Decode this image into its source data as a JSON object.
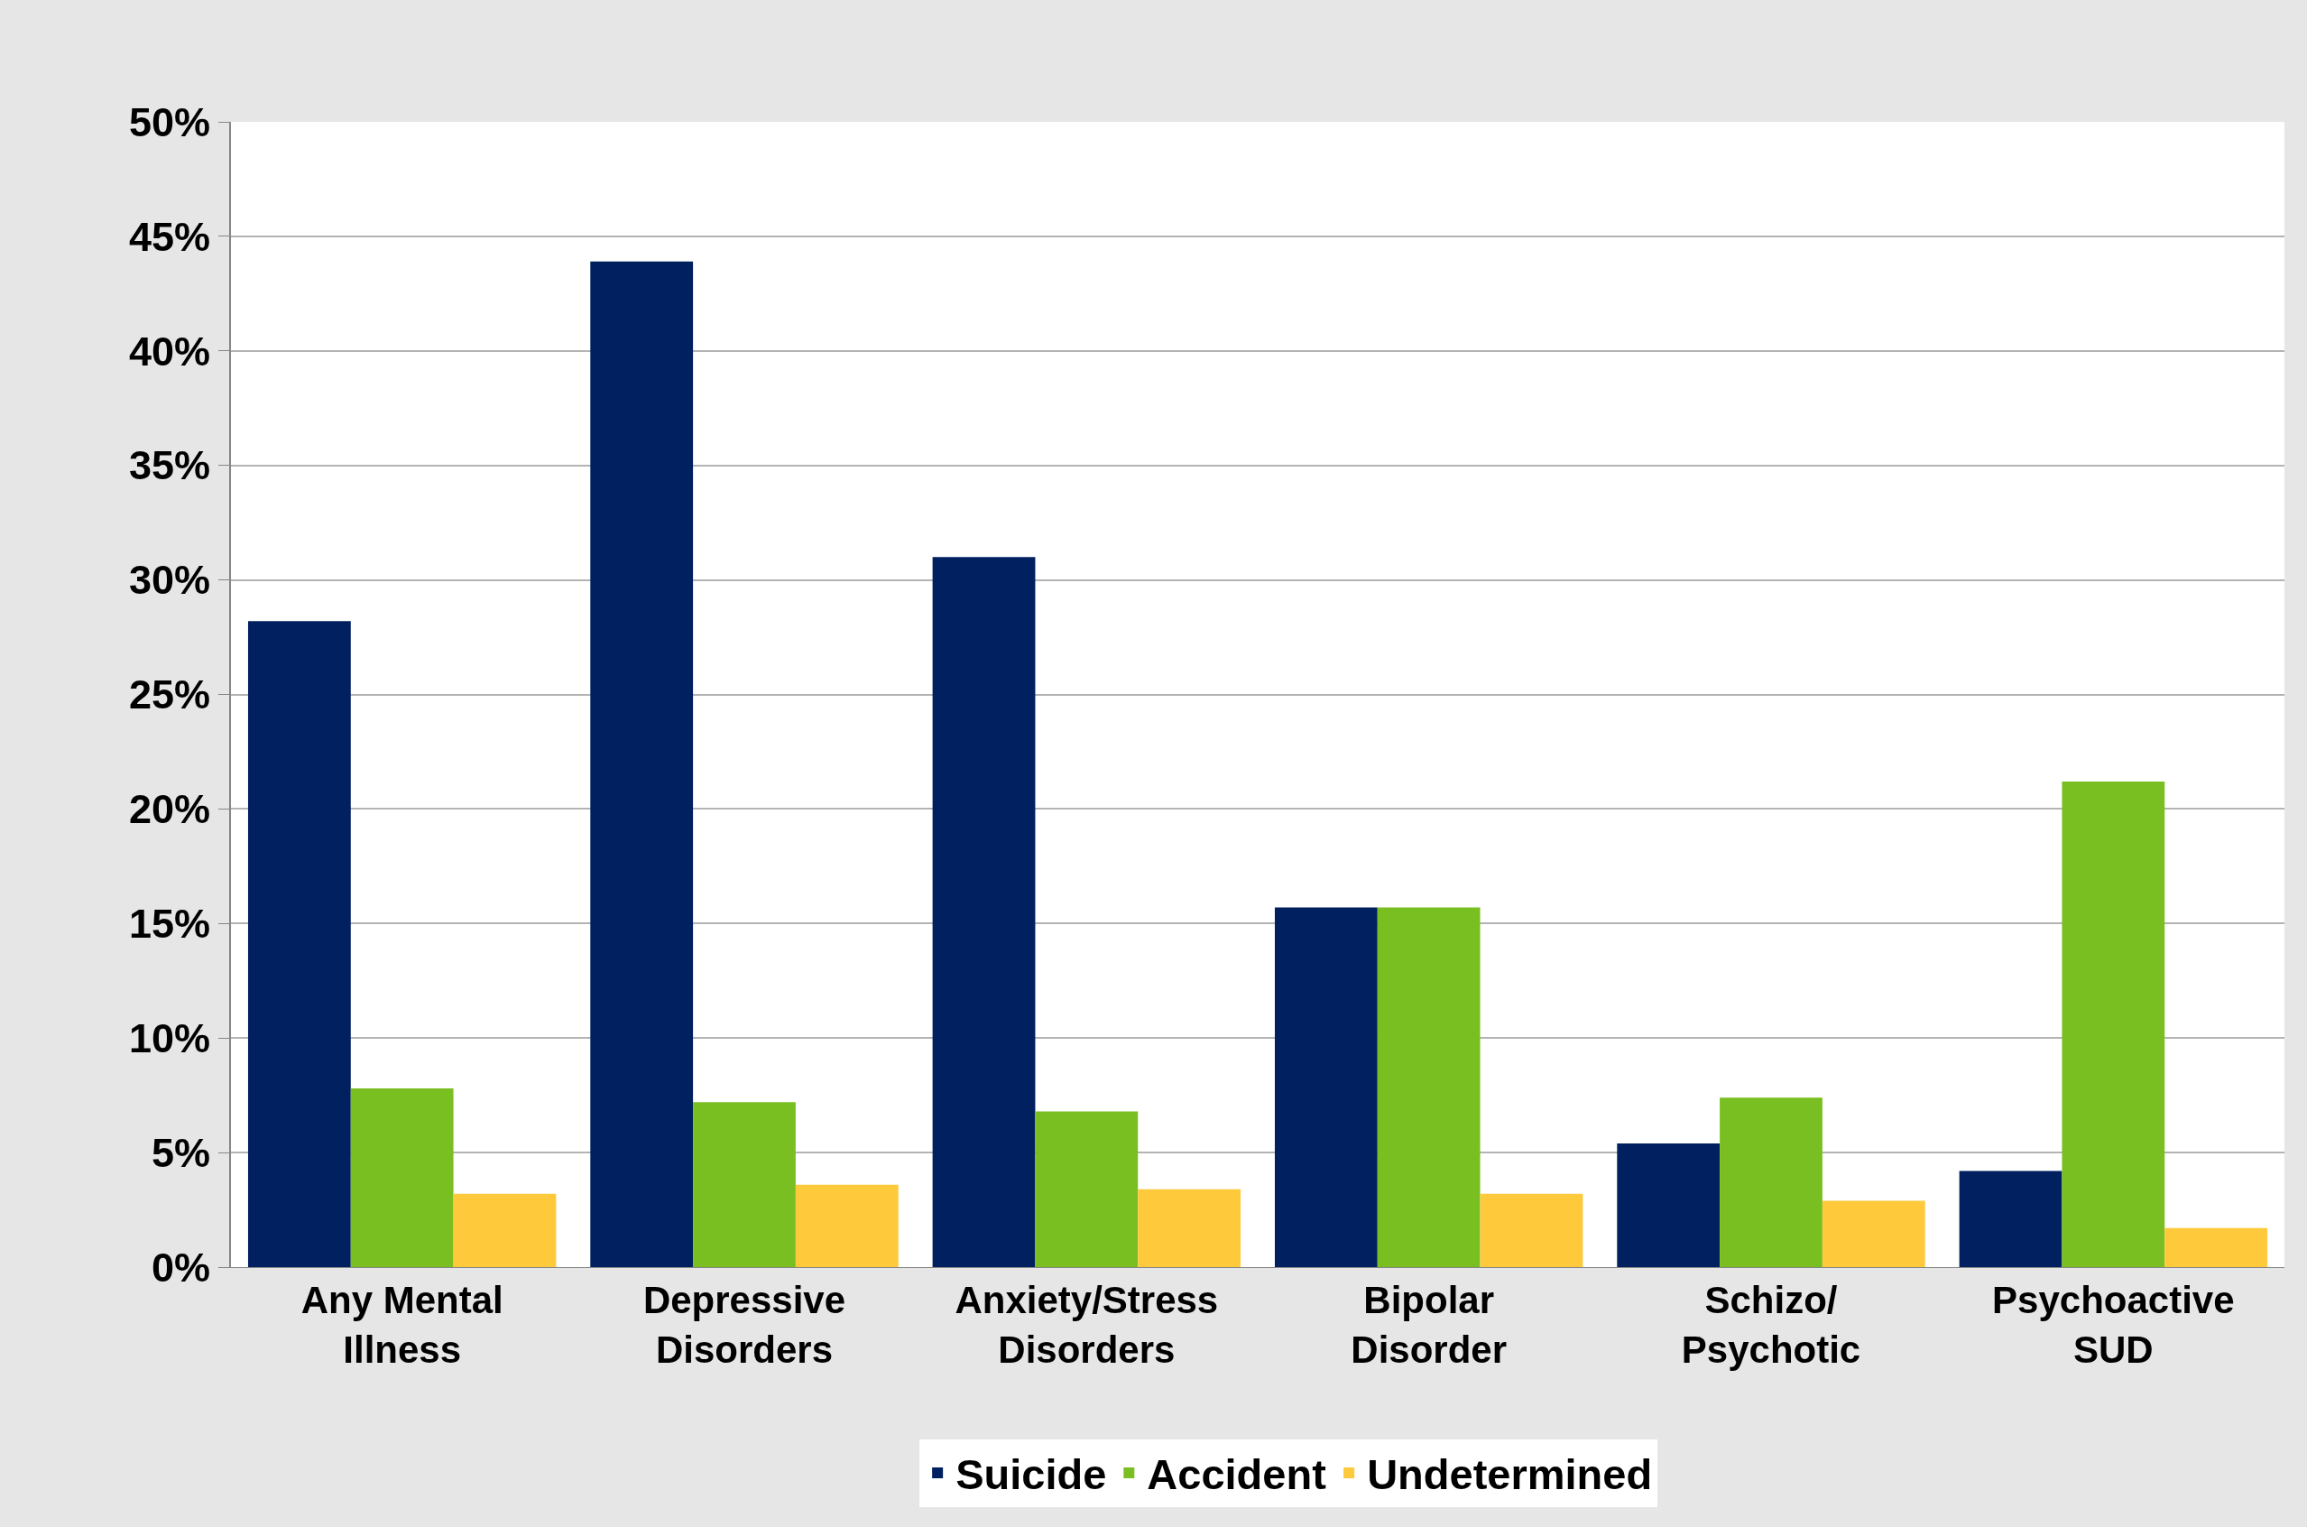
{
  "chart_data": {
    "type": "bar",
    "categories": [
      "Any Mental Illness",
      "Depressive Disorders",
      "Anxiety/Stress Disorders",
      "Bipolar Disorder",
      "Schizo/ Psychotic",
      "Psychoactive SUD"
    ],
    "series": [
      {
        "name": "Suicide",
        "color": "#002060",
        "values": [
          28.2,
          43.9,
          31.0,
          15.7,
          5.4,
          4.2
        ]
      },
      {
        "name": "Accident",
        "color": "#7abf22",
        "values": [
          7.8,
          7.2,
          6.8,
          15.7,
          7.4,
          21.2
        ]
      },
      {
        "name": "Undetermined",
        "color": "#ffc93c",
        "values": [
          3.2,
          3.6,
          3.4,
          3.2,
          2.9,
          1.7
        ]
      }
    ],
    "ylim": [
      0,
      50
    ],
    "yticks": [
      {
        "value": 0,
        "label": "0%"
      },
      {
        "value": 5,
        "label": "5%"
      },
      {
        "value": 10,
        "label": "10%"
      },
      {
        "value": 15,
        "label": "15%"
      },
      {
        "value": 20,
        "label": "20%"
      },
      {
        "value": 25,
        "label": "25%"
      },
      {
        "value": 30,
        "label": "30%"
      },
      {
        "value": 35,
        "label": "35%"
      },
      {
        "value": 40,
        "label": "40%"
      },
      {
        "value": 45,
        "label": "45%"
      },
      {
        "value": 50,
        "label": "50%"
      }
    ],
    "grid": "y",
    "legend": "bottom"
  }
}
